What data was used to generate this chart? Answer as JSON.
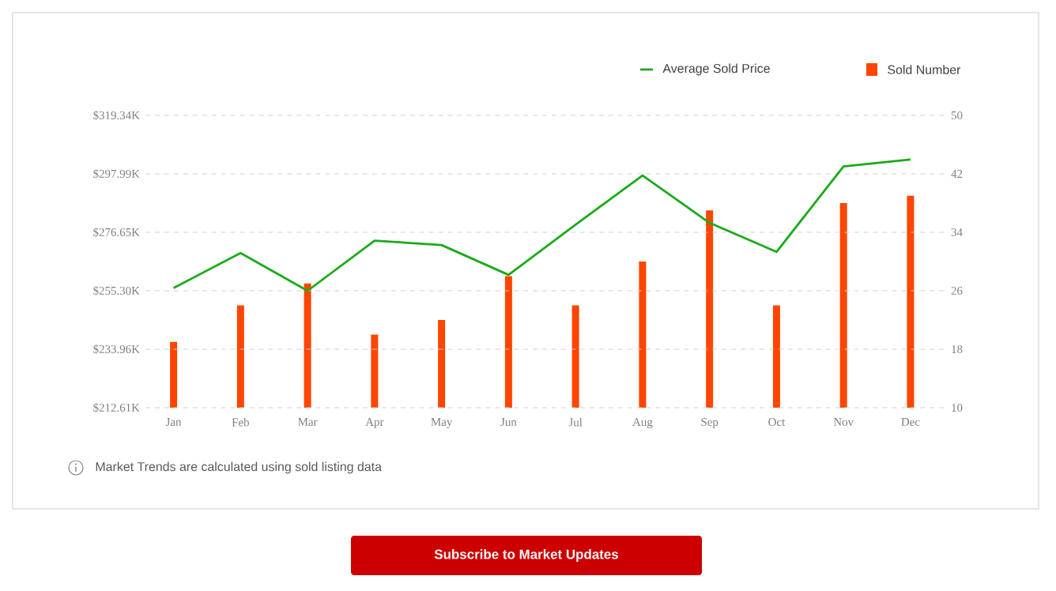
{
  "chart_data": {
    "type": "bar",
    "categories": [
      "Jan",
      "Feb",
      "Mar",
      "Apr",
      "May",
      "Jun",
      "Jul",
      "Aug",
      "Sep",
      "Oct",
      "Nov",
      "Dec"
    ],
    "series": [
      {
        "name": "Average Sold Price",
        "type": "line",
        "color": "#1aaa1a",
        "values": [
          256.3,
          269.1,
          255.3,
          273.6,
          272.0,
          261.1,
          279.4,
          297.4,
          280.1,
          269.5,
          300.7,
          303.2
        ]
      },
      {
        "name": "Sold Number",
        "axis": "y2",
        "color": "#ff4500",
        "values": [
          19,
          24,
          27,
          20,
          22,
          28,
          24,
          30,
          37,
          24,
          38,
          39
        ]
      }
    ],
    "ylim": [
      212.61,
      319.34
    ],
    "yticks": [
      {
        "value": 212.61,
        "label": "$212.61K"
      },
      {
        "value": 233.96,
        "label": "$233.96K"
      },
      {
        "value": 255.3,
        "label": "$255.30K"
      },
      {
        "value": 276.65,
        "label": "$276.65K"
      },
      {
        "value": 297.99,
        "label": "$297.99K"
      },
      {
        "value": 319.34,
        "label": "$319.34K"
      }
    ],
    "y2lim": [
      10,
      50
    ],
    "y2ticks": [
      10,
      18,
      26,
      34,
      42,
      50
    ],
    "grid": "y",
    "legend": "top right",
    "annotations": [
      "Market Trends are calculated using sold listing data",
      "Subscribe to Market Updates"
    ]
  }
}
